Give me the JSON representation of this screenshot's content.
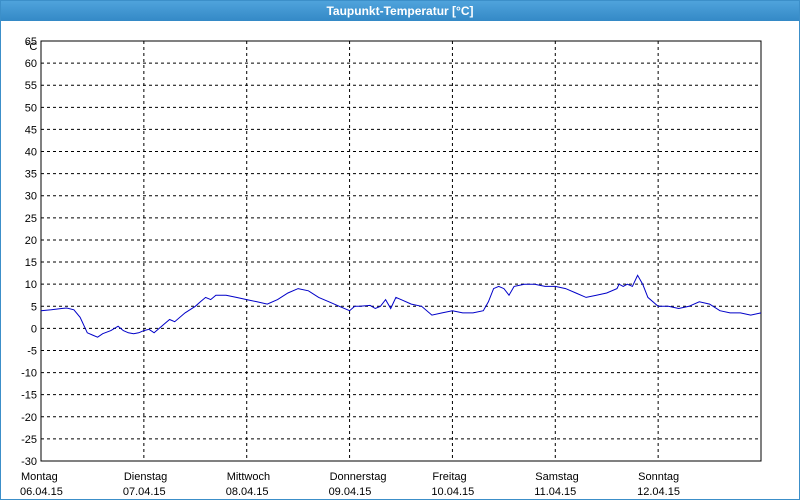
{
  "window": {
    "title": "Taupunkt-Temperatur [°C]"
  },
  "chart_data": {
    "type": "line",
    "title": "Taupunkt-Temperatur [°C]",
    "ylabel": "°C",
    "xlabel": "",
    "ylim": [
      -30,
      65
    ],
    "yticks": [
      65,
      60,
      55,
      50,
      45,
      40,
      35,
      30,
      25,
      20,
      15,
      10,
      5,
      0,
      -5,
      -10,
      -15,
      -20,
      -25,
      -30
    ],
    "xlim": [
      0,
      7
    ],
    "grid": true,
    "x_ticks": [
      {
        "day": "Montag",
        "date": "06.04.15",
        "x": 0
      },
      {
        "day": "Dienstag",
        "date": "07.04.15",
        "x": 1
      },
      {
        "day": "Mittwoch",
        "date": "08.04.15",
        "x": 2
      },
      {
        "day": "Donnerstag",
        "date": "09.04.15",
        "x": 3
      },
      {
        "day": "Freitag",
        "date": "10.04.15",
        "x": 4
      },
      {
        "day": "Samstag",
        "date": "11.04.15",
        "x": 5
      },
      {
        "day": "Sonntag",
        "date": "12.04.15",
        "x": 6
      }
    ],
    "series": [
      {
        "color": "#0000c8",
        "x": [
          0,
          0.1,
          0.2,
          0.25,
          0.32,
          0.38,
          0.45,
          0.5,
          0.55,
          0.6,
          0.68,
          0.75,
          0.8,
          0.85,
          0.9,
          0.95,
          1.0,
          1.05,
          1.1,
          1.2,
          1.25,
          1.3,
          1.4,
          1.5,
          1.55,
          1.6,
          1.65,
          1.7,
          1.8,
          1.9,
          2.0,
          2.1,
          2.2,
          2.3,
          2.4,
          2.5,
          2.6,
          2.7,
          2.8,
          2.9,
          3.0,
          3.05,
          3.1,
          3.2,
          3.25,
          3.3,
          3.35,
          3.4,
          3.45,
          3.5,
          3.6,
          3.7,
          3.8,
          3.9,
          4.0,
          4.1,
          4.2,
          4.3,
          4.35,
          4.4,
          4.45,
          4.5,
          4.55,
          4.6,
          4.7,
          4.8,
          4.9,
          5.0,
          5.1,
          5.2,
          5.3,
          5.4,
          5.5,
          5.6,
          5.62,
          5.66,
          5.7,
          5.75,
          5.8,
          5.85,
          5.9,
          6.0,
          6.1,
          6.2,
          6.3,
          6.4,
          6.5,
          6.6,
          6.7,
          6.8,
          6.9,
          7.0
        ],
        "values": [
          4,
          4.2,
          4.5,
          4.6,
          4.2,
          2.5,
          -1,
          -1.5,
          -2,
          -1.2,
          -0.5,
          0.5,
          -0.5,
          -1,
          -1.2,
          -1,
          -0.5,
          -0.2,
          -1,
          1,
          2,
          1.5,
          3.5,
          5,
          6,
          7,
          6.5,
          7.5,
          7.5,
          7,
          6.5,
          6,
          5.5,
          6.5,
          8,
          9,
          8.5,
          7,
          6,
          5,
          4,
          5,
          5,
          5.2,
          4.5,
          5,
          6.5,
          4.5,
          7,
          6.5,
          5.5,
          5,
          3,
          3.5,
          4,
          3.5,
          3.5,
          4,
          6,
          9,
          9.5,
          9,
          7.5,
          9.5,
          10,
          10,
          9.5,
          9.5,
          9,
          8,
          7,
          7.5,
          8,
          9,
          10,
          9.5,
          10,
          9.5,
          12,
          10,
          7,
          5,
          5,
          4.5,
          5,
          6,
          5.5,
          4,
          3.5,
          3.5,
          3,
          3.5
        ]
      }
    ]
  }
}
